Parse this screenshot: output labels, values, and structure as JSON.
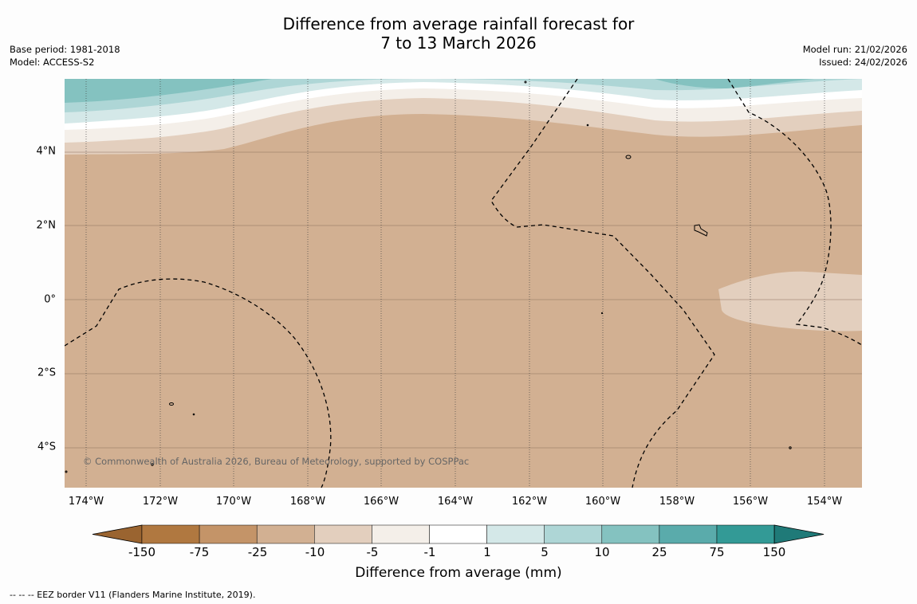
{
  "title": {
    "line1": "Difference from average rainfall forecast for",
    "line2": "7 to 13 March 2026"
  },
  "meta": {
    "base_period": "Base period: 1981-2018",
    "model": "Model: ACCESS-S2",
    "model_run": "Model run: 21/02/2026",
    "issued": "Issued: 24/02/2026"
  },
  "map": {
    "lat_labels": [
      "4°N",
      "2°N",
      "0°",
      "2°S",
      "4°S"
    ],
    "lon_labels": [
      "174°W",
      "172°W",
      "170°W",
      "168°W",
      "166°W",
      "164°W",
      "162°W",
      "160°W",
      "158°W",
      "156°W",
      "154°W"
    ],
    "copyright": "© Commonwealth of Australia 2026, Bureau of Meteorology, supported by COSPPac"
  },
  "legend": {
    "ticks": [
      "-150",
      "-75",
      "-25",
      "-10",
      "-5",
      "-1",
      "1",
      "5",
      "10",
      "25",
      "75",
      "150"
    ],
    "colors": [
      "#9a6430",
      "#b07840",
      "#c49468",
      "#d2b092",
      "#e3cfbe",
      "#f4efe9",
      "#ffffff",
      "#d4e8e8",
      "#aed6d6",
      "#84c2c0",
      "#5aabab",
      "#339a96",
      "#1f7a78"
    ],
    "label": "Difference from average (mm)"
  },
  "footnote": "--  --  -- EEZ border V11 (Flanders Marine Institute, 2019)."
}
